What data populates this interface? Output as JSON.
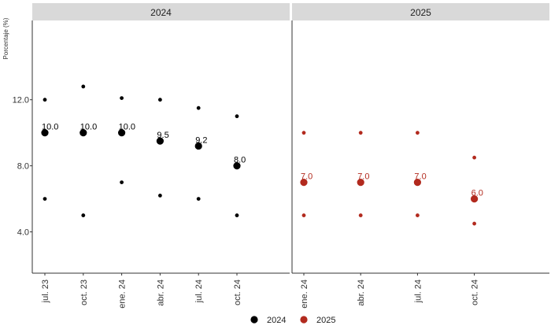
{
  "chart_data": {
    "type": "scatter",
    "ylabel": "Porcentaje (%)",
    "yticks": [
      "4.0",
      "8.0",
      "12.0"
    ],
    "ylim": [
      1.5,
      16.8
    ],
    "legend_position": "bottom",
    "colors": {
      "2024": "#000000",
      "2025": "#b22a1e",
      "strip": "#d9d9d9",
      "axis": "#333333"
    },
    "panels": [
      {
        "label": "2024",
        "color_key": "2024",
        "x_ticks": [
          "jul. 23",
          "oct. 23",
          "ene. 24",
          "abr. 24",
          "jul. 24",
          "oct. 24"
        ],
        "x_slots": 7,
        "points": [
          {
            "x": "jul. 23",
            "median": 10.0,
            "median_label": "10.0",
            "high": 12.0,
            "low": 6.0
          },
          {
            "x": "oct. 23",
            "median": 10.0,
            "median_label": "10.0",
            "high": 12.8,
            "low": 5.0
          },
          {
            "x": "ene. 24",
            "median": 10.0,
            "median_label": "10.0",
            "high": 12.1,
            "low": 7.0
          },
          {
            "x": "abr. 24",
            "median": 9.5,
            "median_label": "9.5",
            "high": 12.0,
            "low": 6.2
          },
          {
            "x": "jul. 24",
            "median": 9.2,
            "median_label": "9.2",
            "high": 11.5,
            "low": 6.0
          },
          {
            "x": "oct. 24",
            "median": 8.0,
            "median_label": "8.0",
            "high": 11.0,
            "low": 5.0
          }
        ]
      },
      {
        "label": "2025",
        "color_key": "2025",
        "x_ticks": [
          "ene. 24",
          "abr. 24",
          "jul. 24",
          "oct. 24"
        ],
        "x_slots": 4.7,
        "points": [
          {
            "x": "ene. 24",
            "median": 7.0,
            "median_label": "7.0",
            "high": 10.0,
            "low": 5.0
          },
          {
            "x": "abr. 24",
            "median": 7.0,
            "median_label": "7.0",
            "high": 10.0,
            "low": 5.0
          },
          {
            "x": "jul. 24",
            "median": 7.0,
            "median_label": "7.0",
            "high": 10.0,
            "low": 5.0
          },
          {
            "x": "oct. 24",
            "median": 6.0,
            "median_label": "6.0",
            "high": 8.5,
            "low": 4.5
          }
        ]
      }
    ],
    "legend": [
      {
        "label": "2024",
        "color_key": "2024"
      },
      {
        "label": "2025",
        "color_key": "2025"
      }
    ]
  }
}
